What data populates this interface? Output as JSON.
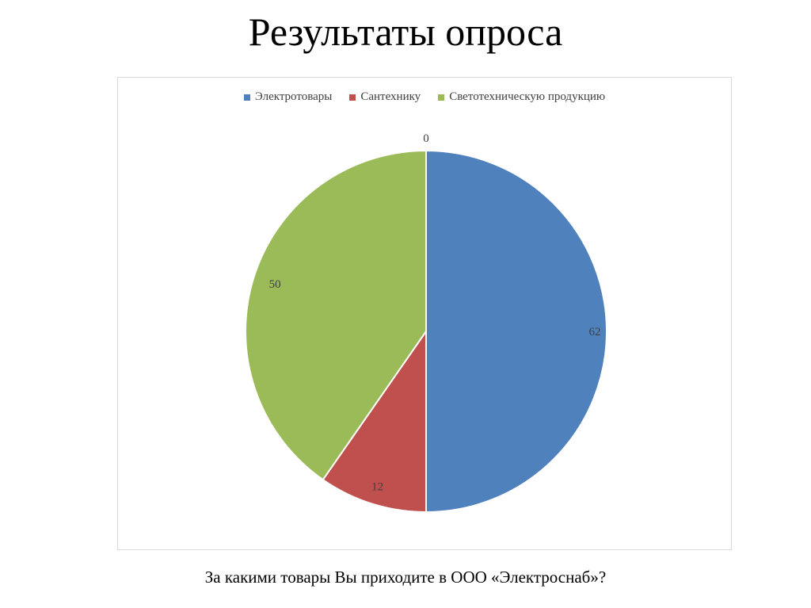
{
  "slide": {
    "title": "Результаты опроса",
    "caption": "За какими товары Вы приходите в ООО «Электроснаб»?"
  },
  "chart_data": {
    "type": "pie",
    "categories": [
      "Электротовары",
      "Сантехнику",
      "Светотехническую продукцию"
    ],
    "values": [
      62,
      12,
      50
    ],
    "colors": [
      "#4f81bd",
      "#c0504d",
      "#9bbb59"
    ],
    "data_labels": [
      "62",
      "12",
      "50"
    ],
    "extra_label": "0",
    "legend_position": "top",
    "start_angle_deg": 0,
    "direction": "clockwise"
  }
}
